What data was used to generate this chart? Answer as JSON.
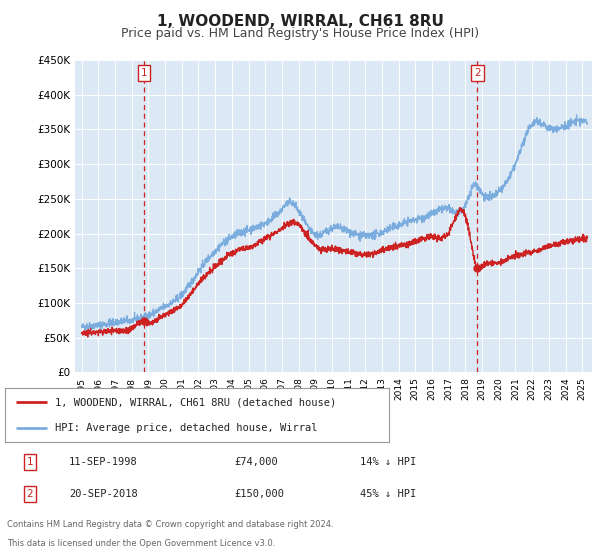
{
  "title": "1, WOODEND, WIRRAL, CH61 8RU",
  "subtitle": "Price paid vs. HM Land Registry's House Price Index (HPI)",
  "title_fontsize": 11,
  "subtitle_fontsize": 9,
  "background_color": "#ffffff",
  "plot_bg_color": "#dce9f5",
  "grid_color": "#c8d8e8",
  "ylim": [
    0,
    450000
  ],
  "yticks": [
    0,
    50000,
    100000,
    150000,
    200000,
    250000,
    300000,
    350000,
    400000,
    450000
  ],
  "ytick_labels": [
    "£0",
    "£50K",
    "£100K",
    "£150K",
    "£200K",
    "£250K",
    "£300K",
    "£350K",
    "£400K",
    "£450K"
  ],
  "xlim_start": 1994.6,
  "xlim_end": 2025.6,
  "xtick_years": [
    1995,
    1996,
    1997,
    1998,
    1999,
    2000,
    2001,
    2002,
    2003,
    2004,
    2005,
    2006,
    2007,
    2008,
    2009,
    2010,
    2011,
    2012,
    2013,
    2014,
    2015,
    2016,
    2017,
    2018,
    2019,
    2020,
    2021,
    2022,
    2023,
    2024,
    2025
  ],
  "hpi_color": "#7aadde",
  "price_color": "#cc2222",
  "vline_color": "#cc2222",
  "marker1_x": 1998.72,
  "marker1_y": 74000,
  "marker2_x": 2018.72,
  "marker2_y": 150000,
  "sale1_date": "11-SEP-1998",
  "sale1_price": "£74,000",
  "sale1_hpi": "14% ↓ HPI",
  "sale2_date": "20-SEP-2018",
  "sale2_price": "£150,000",
  "sale2_hpi": "45% ↓ HPI",
  "legend_label1": "1, WOODEND, WIRRAL, CH61 8RU (detached house)",
  "legend_label2": "HPI: Average price, detached house, Wirral",
  "footer1": "Contains HM Land Registry data © Crown copyright and database right 2024.",
  "footer2": "This data is licensed under the Open Government Licence v3.0."
}
